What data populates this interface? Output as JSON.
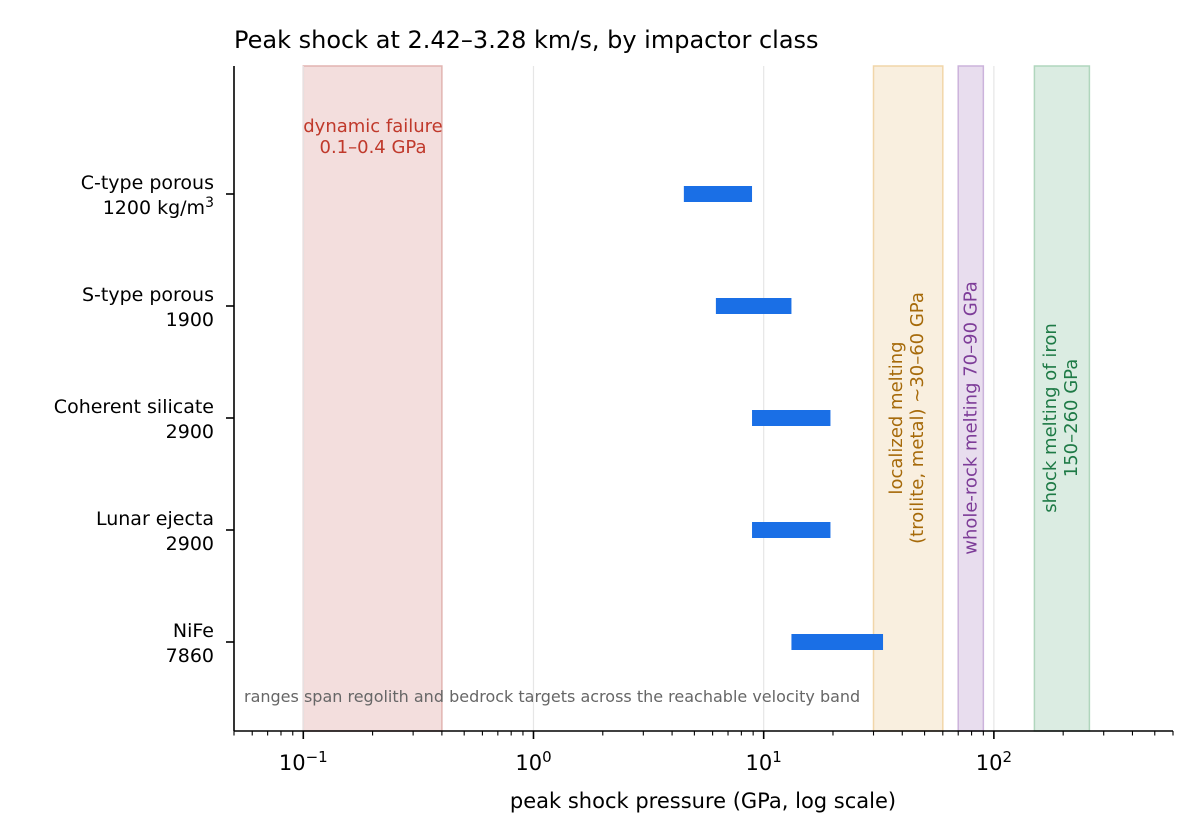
{
  "chart_data": {
    "type": "range-bar",
    "title": "Peak shock at 2.42–3.28 km/s, by impactor class",
    "xlabel": "peak shock pressure  (GPa, log scale)",
    "ylabel": "",
    "xscale": "log",
    "xlim": [
      0.05,
      600
    ],
    "grid": "vertical gridlines at decades",
    "x_ticks": [
      {
        "value": 0.1,
        "base": "10",
        "exp": "−1"
      },
      {
        "value": 1,
        "base": "10",
        "exp": "0"
      },
      {
        "value": 10,
        "base": "10",
        "exp": "1"
      },
      {
        "value": 100,
        "base": "10",
        "exp": "2"
      }
    ],
    "categories": [
      {
        "line1": "C-type porous",
        "line2": "1200 kg/m",
        "sup": "3",
        "low": 4.5,
        "high": 8.9
      },
      {
        "line1": "S-type porous",
        "line2": "1900",
        "sup": "",
        "low": 6.2,
        "high": 13.2
      },
      {
        "line1": "Coherent silicate",
        "line2": "2900",
        "sup": "",
        "low": 8.9,
        "high": 19.5
      },
      {
        "line1": "Lunar ejecta",
        "line2": "2900",
        "sup": "",
        "low": 8.9,
        "high": 19.5
      },
      {
        "line1": "NiFe",
        "line2": "7860",
        "sup": "",
        "low": 13.2,
        "high": 33.0
      }
    ],
    "bar_color": "#1a6fe6",
    "bands": [
      {
        "name": "dynamic-failure",
        "low": 0.1,
        "high": 0.4,
        "fill": "#f3dedd",
        "edge": "#e2b4b1",
        "label_color": "#c0392b",
        "orientation": "horizontal",
        "label": [
          "dynamic failure",
          "0.1–0.4 GPa"
        ]
      },
      {
        "name": "localized-melting",
        "low": 30,
        "high": 60,
        "fill": "#f9efdf",
        "edge": "#f1d6a9",
        "label_color": "#a66a0a",
        "orientation": "vertical",
        "label": [
          "localized melting",
          "(troilite, metal)  ~30–60 GPa"
        ]
      },
      {
        "name": "whole-rock-melting",
        "low": 70,
        "high": 90,
        "fill": "#e8ddee",
        "edge": "#ccb3dc",
        "label_color": "#7d3c98",
        "orientation": "vertical",
        "label": [
          "whole-rock melting  70–90 GPa"
        ]
      },
      {
        "name": "iron-melting",
        "low": 150,
        "high": 260,
        "fill": "#dbece2",
        "edge": "#b0d6bd",
        "label_color": "#1e7a46",
        "orientation": "vertical",
        "label": [
          "shock melting of iron",
          "150–260 GPa"
        ]
      }
    ],
    "footnote": "ranges span regolith and bedrock targets across the reachable velocity band"
  }
}
